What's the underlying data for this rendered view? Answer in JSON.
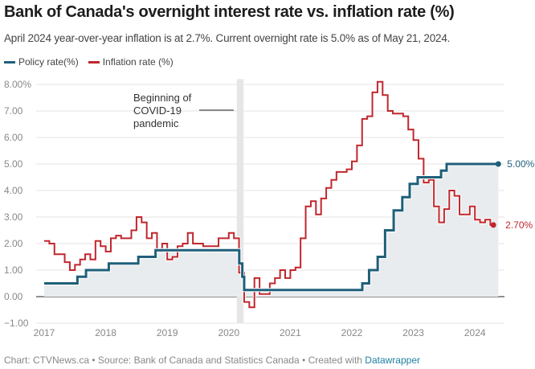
{
  "title": "Bank of Canada's overnight interest rate vs. inflation rate (%)",
  "subtitle": "April 2024 year-over-year inflation is at 2.7%. Current overnight rate is 5.0% as of May 21, 2024.",
  "legend": [
    {
      "label": "Policy rate(%)",
      "color": "#1f5f7a"
    },
    {
      "label": "Inflation rate (%)",
      "color": "#c0272d"
    }
  ],
  "footer": {
    "text": "Chart: CTVNews.ca • Source: Bank of Canada and Statistics Canada • Created with ",
    "link": "Datawrapper"
  },
  "chart_data": {
    "type": "line",
    "step": true,
    "ylim": [
      -1,
      8
    ],
    "yticks": [
      -1,
      0,
      1,
      2,
      3,
      4,
      5,
      6,
      7,
      8
    ],
    "ytick_labels": [
      "−1.00",
      "0.00",
      "1.00",
      "2.00",
      "3.00",
      "4.00",
      "5.00",
      "6.00",
      "7.00",
      "8.00%"
    ],
    "xlim": [
      2017,
      2024.5
    ],
    "xticks": [
      2017,
      2018,
      2019,
      2020,
      2021,
      2022,
      2023,
      2024
    ],
    "xtick_labels": [
      "2017",
      "2018",
      "2019",
      "2020",
      "2021",
      "2022",
      "2023",
      "2024"
    ],
    "grid": true,
    "legend_position": "top-left",
    "annotation": {
      "lines": [
        "Beginning of",
        "COVID-19",
        "pandemic"
      ],
      "band": [
        2020.13,
        2020.24
      ]
    },
    "series": [
      {
        "name": "Policy rate(%)",
        "color": "#1f5f7a",
        "end_label": "5.00%",
        "points": [
          [
            2017.0,
            0.5
          ],
          [
            2017.54,
            0.75
          ],
          [
            2017.68,
            1.0
          ],
          [
            2018.05,
            1.25
          ],
          [
            2018.53,
            1.5
          ],
          [
            2018.81,
            1.75
          ],
          [
            2020.17,
            1.25
          ],
          [
            2020.22,
            0.75
          ],
          [
            2020.25,
            0.25
          ],
          [
            2022.17,
            0.5
          ],
          [
            2022.28,
            1.0
          ],
          [
            2022.42,
            1.5
          ],
          [
            2022.54,
            2.5
          ],
          [
            2022.68,
            3.25
          ],
          [
            2022.82,
            3.75
          ],
          [
            2022.94,
            4.25
          ],
          [
            2023.07,
            4.5
          ],
          [
            2023.45,
            4.75
          ],
          [
            2023.54,
            5.0
          ],
          [
            2024.38,
            5.0
          ]
        ]
      },
      {
        "name": "Inflation rate (%)",
        "color": "#c0272d",
        "end_label": "2.70%",
        "start": 2017.0,
        "monthly": [
          2.1,
          2.0,
          1.6,
          1.6,
          1.3,
          1.0,
          1.2,
          1.4,
          1.6,
          1.4,
          2.1,
          1.9,
          1.7,
          2.2,
          2.3,
          2.2,
          2.2,
          2.5,
          3.0,
          2.8,
          2.2,
          2.4,
          1.7,
          2.0,
          1.4,
          1.5,
          1.9,
          2.0,
          2.4,
          2.0,
          2.0,
          1.9,
          1.9,
          1.9,
          2.2,
          2.2,
          2.4,
          2.2,
          0.9,
          -0.2,
          -0.4,
          0.7,
          0.1,
          0.1,
          0.5,
          0.7,
          1.0,
          0.7,
          1.0,
          1.1,
          2.2,
          3.4,
          3.6,
          3.1,
          3.7,
          4.1,
          4.4,
          4.7,
          4.7,
          4.8,
          5.1,
          5.7,
          6.7,
          6.8,
          7.7,
          8.1,
          7.6,
          7.0,
          6.9,
          6.9,
          6.8,
          6.3,
          5.9,
          5.2,
          4.3,
          4.4,
          3.4,
          2.8,
          3.3,
          4.0,
          3.8,
          3.1,
          3.1,
          3.4,
          2.9,
          2.8,
          2.9,
          2.7
        ]
      }
    ]
  }
}
